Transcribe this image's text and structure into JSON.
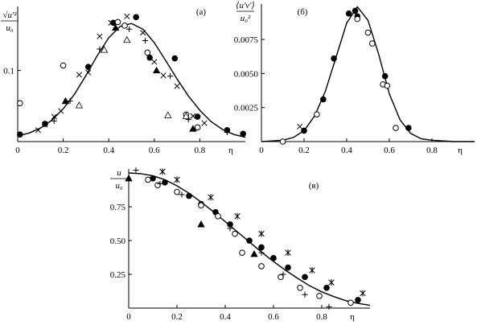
{
  "chart_data": [
    {
      "type": "scatter",
      "panel_label": "(а)",
      "ylabel": "√u'² / u₀",
      "xlabel": "η",
      "xlim": [
        0,
        1.0
      ],
      "ylim": [
        0,
        0.19
      ],
      "x_ticks": [
        0,
        0.2,
        0.4,
        0.6,
        0.8
      ],
      "y_ticks": [
        0.1
      ],
      "grid": false,
      "curve": {
        "x": [
          0.0,
          0.05,
          0.1,
          0.15,
          0.2,
          0.25,
          0.3,
          0.35,
          0.4,
          0.45,
          0.5,
          0.55,
          0.6,
          0.65,
          0.7,
          0.75,
          0.8,
          0.85,
          0.9,
          0.95,
          1.0
        ],
        "y": [
          0.008,
          0.012,
          0.019,
          0.03,
          0.046,
          0.067,
          0.093,
          0.121,
          0.146,
          0.162,
          0.166,
          0.158,
          0.139,
          0.114,
          0.088,
          0.064,
          0.044,
          0.028,
          0.017,
          0.01,
          0.006
        ]
      },
      "series": [
        {
          "marker": "filled-circle",
          "x": [
            0.01,
            0.12,
            0.31,
            0.42,
            0.52,
            0.58,
            0.69,
            0.79,
            0.92,
            0.99
          ],
          "y": [
            0.01,
            0.025,
            0.105,
            0.167,
            0.175,
            0.118,
            0.117,
            0.035,
            0.016,
            0.011
          ]
        },
        {
          "marker": "open-circle",
          "x": [
            0.01,
            0.2,
            0.44,
            0.47,
            0.57,
            0.74,
            0.79
          ],
          "y": [
            0.054,
            0.107,
            0.168,
            0.163,
            0.125,
            0.038,
            0.02
          ]
        },
        {
          "marker": "filled-triangle",
          "x": [
            0.21,
            0.43,
            0.61,
            0.77
          ],
          "y": [
            0.057,
            0.16,
            0.1,
            0.018
          ]
        },
        {
          "marker": "open-triangle",
          "x": [
            0.27,
            0.38,
            0.48,
            0.66,
            0.74
          ],
          "y": [
            0.051,
            0.129,
            0.143,
            0.037,
            0.036
          ]
        },
        {
          "marker": "x-cross",
          "x": [
            0.09,
            0.12,
            0.16,
            0.19,
            0.27,
            0.31,
            0.36,
            0.41,
            0.48,
            0.55,
            0.6,
            0.64,
            0.7,
            0.77,
            0.82
          ],
          "y": [
            0.016,
            0.024,
            0.035,
            0.043,
            0.094,
            0.097,
            0.148,
            0.167,
            0.176,
            0.153,
            0.112,
            0.093,
            0.078,
            0.036,
            0.026
          ]
        },
        {
          "marker": "plus",
          "x": [
            0.16,
            0.23,
            0.36,
            0.49,
            0.56,
            0.67,
            0.75,
            0.92
          ],
          "y": [
            0.029,
            0.057,
            0.13,
            0.158,
            0.142,
            0.092,
            0.031,
            0.013
          ]
        }
      ]
    },
    {
      "type": "scatter",
      "panel_label": "(б)",
      "ylabel": "⟨u'v'⟩ / u₀²",
      "xlabel": "η",
      "xlim": [
        0,
        1.0
      ],
      "ylim": [
        0,
        0.0101
      ],
      "x_ticks": [
        0,
        0.2,
        0.4,
        0.6,
        0.8
      ],
      "y_ticks": [
        0.0025,
        0.005,
        0.0075
      ],
      "y_tick_labels": [
        "0.0025",
        "0.0050",
        "0.0075"
      ],
      "grid": false,
      "curve": {
        "x": [
          0.0,
          0.1,
          0.15,
          0.2,
          0.25,
          0.3,
          0.35,
          0.4,
          0.45,
          0.5,
          0.55,
          0.6,
          0.65,
          0.7,
          0.75,
          0.8,
          0.9,
          1.0
        ],
        "y": [
          0.0,
          0.0001,
          0.0003,
          0.0008,
          0.0019,
          0.0037,
          0.0062,
          0.0087,
          0.0099,
          0.0089,
          0.0064,
          0.0035,
          0.0016,
          0.0006,
          0.0002,
          0.0001,
          0.0,
          0.0
        ]
      },
      "series": [
        {
          "marker": "filled-circle",
          "x": [
            0.2,
            0.29,
            0.34,
            0.41,
            0.44,
            0.45,
            0.58,
            0.69
          ],
          "y": [
            0.0008,
            0.0031,
            0.0061,
            0.0094,
            0.0096,
            0.0092,
            0.0048,
            0.001
          ]
        },
        {
          "marker": "open-circle",
          "x": [
            0.1,
            0.26,
            0.45,
            0.5,
            0.52,
            0.57,
            0.59,
            0.63
          ],
          "y": [
            0.0,
            0.002,
            0.009,
            0.008,
            0.0072,
            0.0042,
            0.0041,
            0.001
          ]
        },
        {
          "marker": "x-cross",
          "x": [
            0.18
          ],
          "y": [
            0.0011
          ]
        }
      ]
    },
    {
      "type": "scatter",
      "panel_label": "(в)",
      "ylabel": "u / u₀",
      "xlabel": "η",
      "xlim": [
        0,
        1.0
      ],
      "ylim": [
        0,
        1.03
      ],
      "x_ticks": [
        0,
        0.2,
        0.4,
        0.6,
        0.8
      ],
      "y_ticks": [
        0.25,
        0.5,
        0.75
      ],
      "y_tick_labels": [
        "0.25",
        "0.50",
        "0.75"
      ],
      "grid": false,
      "curve": {
        "x": [
          0.0,
          0.05,
          0.1,
          0.15,
          0.2,
          0.25,
          0.3,
          0.35,
          0.4,
          0.45,
          0.5,
          0.55,
          0.6,
          0.65,
          0.7,
          0.75,
          0.8,
          0.85,
          0.9,
          0.95,
          1.0
        ],
        "y": [
          1.0,
          0.995,
          0.98,
          0.95,
          0.905,
          0.85,
          0.785,
          0.715,
          0.64,
          0.565,
          0.49,
          0.415,
          0.345,
          0.28,
          0.22,
          0.165,
          0.12,
          0.085,
          0.055,
          0.035,
          0.02
        ]
      },
      "series": [
        {
          "marker": "filled-circle",
          "x": [
            0.1,
            0.15,
            0.25,
            0.3,
            0.36,
            0.42,
            0.5,
            0.55,
            0.6,
            0.66,
            0.73,
            0.82,
            0.95
          ],
          "y": [
            0.96,
            0.93,
            0.83,
            0.77,
            0.71,
            0.62,
            0.5,
            0.45,
            0.37,
            0.3,
            0.23,
            0.15,
            0.06
          ]
        },
        {
          "marker": "open-circle",
          "x": [
            0.08,
            0.12,
            0.2,
            0.3,
            0.37,
            0.44,
            0.47,
            0.55,
            0.63,
            0.71,
            0.79,
            0.92
          ],
          "y": [
            0.95,
            0.91,
            0.86,
            0.76,
            0.68,
            0.55,
            0.41,
            0.31,
            0.23,
            0.15,
            0.09,
            0.04
          ]
        },
        {
          "marker": "filled-triangle",
          "x": [
            0.0,
            0.3,
            0.52
          ],
          "y": [
            0.96,
            0.62,
            0.4
          ]
        },
        {
          "marker": "plus",
          "x": [
            0.03,
            0.13,
            0.22,
            0.42,
            0.55,
            0.64,
            0.73,
            0.83
          ],
          "y": [
            1.02,
            0.92,
            0.84,
            0.59,
            0.41,
            0.25,
            0.1,
            0.01
          ]
        },
        {
          "marker": "star",
          "x": [
            0.14,
            0.2,
            0.34,
            0.45,
            0.55,
            0.66,
            0.76,
            0.84,
            0.97
          ],
          "y": [
            1.01,
            0.95,
            0.82,
            0.68,
            0.55,
            0.41,
            0.28,
            0.19,
            0.11
          ]
        }
      ]
    }
  ]
}
